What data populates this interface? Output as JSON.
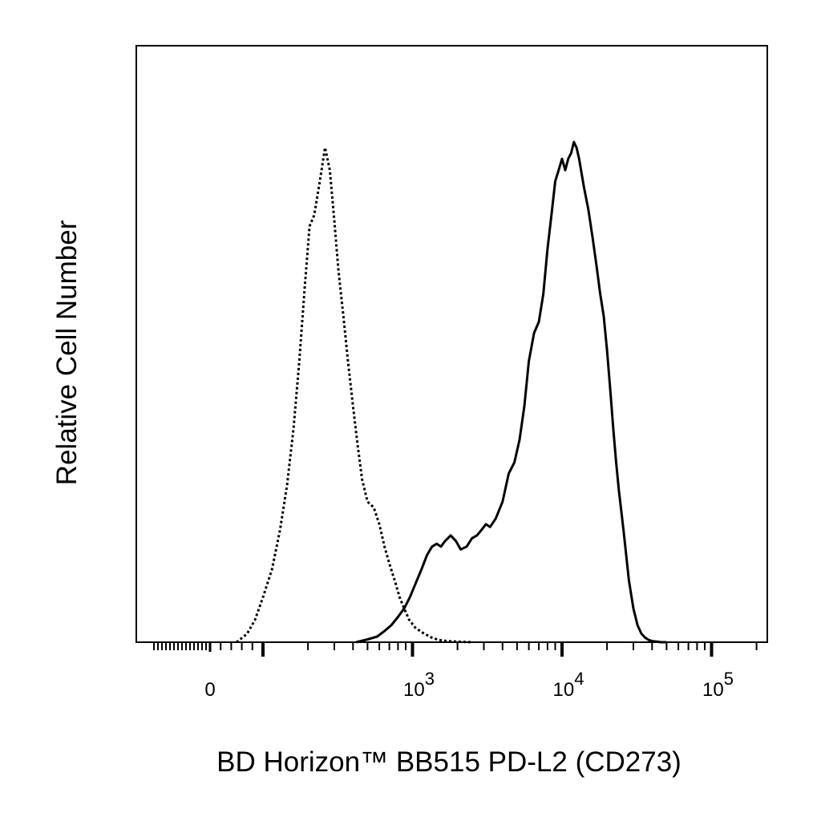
{
  "chart_data": {
    "type": "line",
    "xlabel": "BD Horizon™ BB515 PD-L2 (CD273)",
    "ylabel": "Relative Cell Number",
    "x_scale": "biexponential",
    "xlim": [
      -300,
      200000
    ],
    "ylim": [
      0,
      100
    ],
    "grid": false,
    "x_tick_labels": [
      {
        "value": 0,
        "base": "0",
        "exp": ""
      },
      {
        "value": 1000,
        "base": "10",
        "exp": "3"
      },
      {
        "value": 10000,
        "base": "10",
        "exp": "4"
      },
      {
        "value": 100000,
        "base": "10",
        "exp": "5"
      }
    ],
    "series": [
      {
        "style": "dotted",
        "x": [
          50,
          70,
          85,
          100,
          115,
          130,
          145,
          160,
          175,
          190,
          205,
          220,
          240,
          260,
          280,
          300,
          320,
          345,
          370,
          400,
          430,
          460,
          500,
          550,
          600,
          650,
          700,
          760,
          820,
          880,
          950,
          1050,
          1200,
          1350,
          1500,
          1700,
          2000,
          2500
        ],
        "y": [
          0,
          1.5,
          4,
          8,
          13,
          20,
          28,
          38,
          50,
          63,
          74,
          76,
          82,
          88,
          84,
          75,
          66,
          58,
          50,
          42,
          35,
          29,
          25,
          24,
          21,
          17,
          14,
          11,
          8,
          6,
          4,
          2.5,
          1.5,
          0.8,
          0.4,
          0.2,
          0.1,
          0
        ]
      },
      {
        "style": "solid",
        "x": [
          420,
          500,
          580,
          650,
          720,
          800,
          880,
          960,
          1050,
          1150,
          1250,
          1350,
          1450,
          1550,
          1650,
          1800,
          1950,
          2100,
          2300,
          2500,
          2700,
          2900,
          3100,
          3300,
          3600,
          4000,
          4400,
          4800,
          5200,
          5600,
          6000,
          6500,
          7000,
          7500,
          8000,
          8500,
          9000,
          9500,
          10000,
          10500,
          11000,
          11500,
          12000,
          12500,
          13000,
          14000,
          15000,
          16000,
          17000,
          18000,
          19000,
          20000,
          21000,
          22000,
          23000,
          24000,
          25000,
          26000,
          27000,
          28000,
          30000,
          32000,
          34000,
          36000,
          38000,
          40000,
          43000,
          46000,
          50000
        ],
        "y": [
          0,
          0.5,
          1,
          2,
          3,
          4.5,
          6,
          8,
          10.5,
          13,
          15.5,
          17,
          17.5,
          17,
          18,
          19,
          18,
          16.5,
          17,
          18.5,
          19,
          20,
          21,
          20.5,
          22,
          25,
          30,
          32,
          36,
          42,
          50,
          55,
          57,
          62,
          70,
          76,
          82,
          84,
          86,
          84,
          86,
          87,
          89,
          88,
          86,
          81,
          77,
          72,
          67,
          62,
          58,
          52,
          45,
          38,
          32,
          27,
          23,
          19,
          15,
          11,
          6,
          3,
          1.5,
          0.8,
          0.4,
          0.2,
          0.1,
          0,
          0
        ]
      }
    ]
  }
}
